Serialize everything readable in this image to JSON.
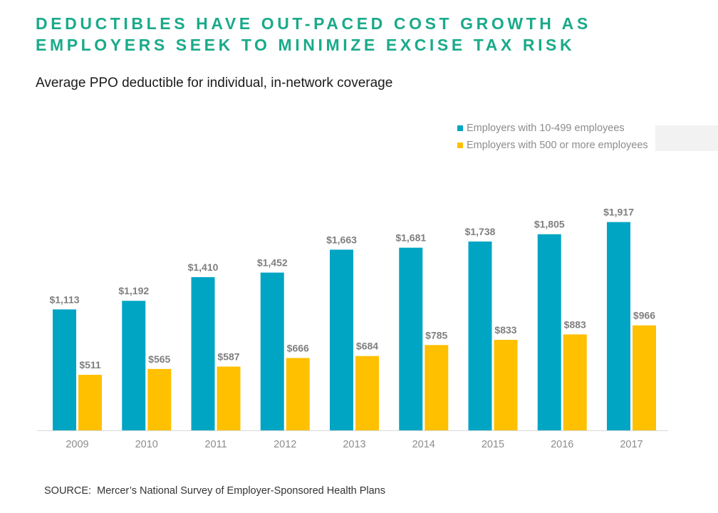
{
  "header": {
    "title_line1": "DEDUCTIBLES HAVE OUT-PACED COST GROWTH AS",
    "title_line2": "EMPLOYERS SEEK TO MINIMIZE EXCISE TAX RISK",
    "subtitle": "Average PPO deductible for individual, in-network coverage"
  },
  "footer": {
    "source": "SOURCE:  Mercer’s National Survey of Employer-Sponsored Health Plans"
  },
  "colors": {
    "title": "#1aaa8a",
    "series_small": "#00a5c4",
    "series_large": "#ffc000",
    "value_label": "#7f7f7f",
    "axis": "#d9d9d9"
  },
  "chart_data": {
    "type": "bar",
    "title": "Average PPO deductible for individual, in-network coverage",
    "categories": [
      "2009",
      "2010",
      "2011",
      "2012",
      "2013",
      "2014",
      "2015",
      "2016",
      "2017"
    ],
    "series": [
      {
        "name": "Employers with 10-499 employees",
        "values": [
          1113,
          1192,
          1410,
          1452,
          1663,
          1681,
          1738,
          1805,
          1917
        ],
        "labels": [
          "$1,113",
          "$1,192",
          "$1,410",
          "$1,452",
          "$1,663",
          "$1,681",
          "$1,738",
          "$1,805",
          "$1,917"
        ]
      },
      {
        "name": "Employers with 500 or more employees",
        "values": [
          511,
          565,
          587,
          666,
          684,
          785,
          833,
          883,
          966
        ],
        "labels": [
          "$511",
          "$565",
          "$587",
          "$666",
          "$684",
          "$785",
          "$833",
          "$883",
          "$966"
        ]
      }
    ],
    "ylim": [
      0,
      2000
    ],
    "grid": false,
    "legend_position": "top-right",
    "xlabel": "",
    "ylabel": ""
  }
}
